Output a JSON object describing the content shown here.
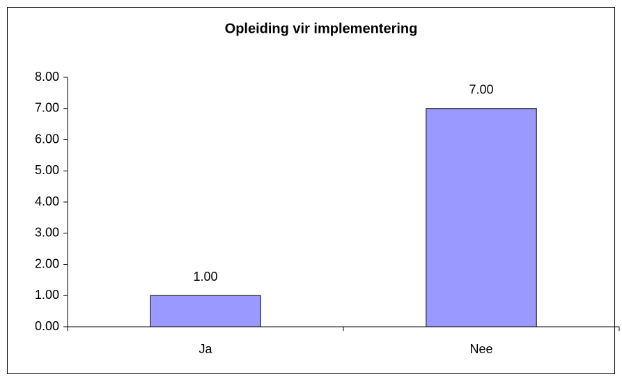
{
  "chart_data": {
    "type": "bar",
    "title": "Opleiding vir implementering",
    "categories": [
      "Ja",
      "Nee"
    ],
    "values": [
      1,
      7
    ],
    "value_labels": [
      "1.00",
      "7.00"
    ],
    "color": "#9999ff",
    "ylim": [
      0,
      8
    ],
    "yticks": [
      {
        "value": 0,
        "label": "0.00"
      },
      {
        "value": 1,
        "label": "1.00"
      },
      {
        "value": 2,
        "label": "2.00"
      },
      {
        "value": 3,
        "label": "3.00"
      },
      {
        "value": 4,
        "label": "4.00"
      },
      {
        "value": 5,
        "label": "5.00"
      },
      {
        "value": 6,
        "label": "6.00"
      },
      {
        "value": 7,
        "label": "7.00"
      },
      {
        "value": 8,
        "label": "8.00"
      }
    ],
    "grid": false
  }
}
